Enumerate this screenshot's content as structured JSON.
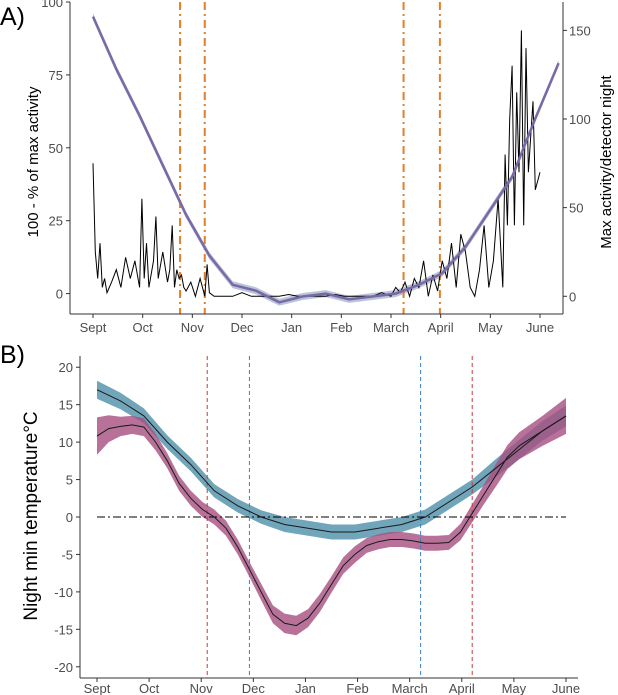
{
  "chart_data": [
    {
      "type": "line",
      "panel_label": "A)",
      "ylabel": "100 - % of max activity",
      "y2label": "Max activity/detector night",
      "x_ticks": [
        "Sept",
        "Oct",
        "Nov",
        "Dec",
        "Jan",
        "Feb",
        "March",
        "April",
        "May",
        "June"
      ],
      "y_ticks": [
        "0",
        "25",
        "50",
        "75",
        "100"
      ],
      "y2_ticks": [
        "0",
        "50",
        "100",
        "150"
      ],
      "ylim": [
        -7,
        100
      ],
      "y2lim": [
        -10,
        166
      ],
      "grid": false,
      "colors": {
        "fit": "#7b68a6",
        "fit_band": "#a7b8cf",
        "activity": "#000000",
        "vline": "#e37e2a"
      },
      "vlines_month_pos": [
        1.87,
        2.4,
        6.67,
        7.45
      ],
      "series": [
        {
          "role": "fit",
          "axis": "left",
          "x": [
            0,
            0.5,
            1,
            1.5,
            2,
            2.5,
            3,
            3.5,
            4,
            4.5,
            5,
            5.5,
            6,
            6.5,
            7,
            7.5,
            8,
            8.5,
            9,
            9.5,
            10
          ],
          "y": [
            95,
            77,
            61,
            44,
            27,
            13,
            3,
            1,
            -3,
            -1,
            0,
            -2,
            -1,
            0,
            3,
            7,
            16,
            28,
            40,
            60,
            79
          ]
        },
        {
          "role": "activity",
          "axis": "right",
          "x": [
            0,
            0.05,
            0.1,
            0.15,
            0.2,
            0.25,
            0.3,
            0.4,
            0.5,
            0.6,
            0.7,
            0.8,
            0.9,
            1.0,
            1.05,
            1.1,
            1.15,
            1.2,
            1.3,
            1.35,
            1.4,
            1.5,
            1.6,
            1.65,
            1.7,
            1.75,
            1.8,
            1.85,
            1.9,
            1.95,
            2.0,
            2.1,
            2.2,
            2.3,
            2.4,
            2.45,
            2.5,
            2.6,
            2.8,
            3.0,
            3.2,
            3.4,
            3.6,
            3.8,
            4.0,
            4.2,
            4.4,
            4.6,
            4.8,
            5.0,
            5.2,
            5.4,
            5.6,
            5.8,
            6.0,
            6.2,
            6.4,
            6.5,
            6.6,
            6.7,
            6.8,
            6.9,
            7.0,
            7.1,
            7.2,
            7.3,
            7.4,
            7.5,
            7.6,
            7.7,
            7.8,
            7.9,
            8.0,
            8.1,
            8.2,
            8.3,
            8.4,
            8.5,
            8.6,
            8.7,
            8.8,
            8.85,
            8.9,
            8.95,
            9.0,
            9.05,
            9.1,
            9.15,
            9.2,
            9.25,
            9.3,
            9.35,
            9.4,
            9.45,
            9.5,
            9.6
          ],
          "y": [
            75,
            25,
            10,
            30,
            5,
            10,
            2,
            8,
            15,
            5,
            22,
            10,
            20,
            5,
            55,
            10,
            30,
            5,
            20,
            45,
            10,
            25,
            8,
            15,
            40,
            5,
            15,
            10,
            12,
            5,
            3,
            8,
            0,
            10,
            0,
            18,
            2,
            0,
            0,
            0,
            2,
            0,
            0,
            0,
            0,
            1,
            0,
            0,
            0,
            0,
            1,
            0,
            0,
            0,
            0,
            2,
            0,
            5,
            2,
            8,
            0,
            10,
            5,
            20,
            0,
            12,
            3,
            20,
            10,
            30,
            5,
            35,
            25,
            5,
            0,
            15,
            40,
            5,
            20,
            55,
            5,
            80,
            40,
            100,
            130,
            40,
            115,
            70,
            150,
            40,
            140,
            70,
            90,
            110,
            60,
            70
          ]
        }
      ]
    },
    {
      "type": "line",
      "panel_label": "B)",
      "ylabel": "Night min temperature°C",
      "x_ticks": [
        "Sept",
        "Oct",
        "Nov",
        "Dec",
        "Jan",
        "Feb",
        "March",
        "April",
        "May",
        "June"
      ],
      "y_ticks": [
        "20",
        "15",
        "10",
        "5",
        "0",
        "-5",
        "-10",
        "-15",
        "-20"
      ],
      "ylim": [
        -21.5,
        21.5
      ],
      "grid": false,
      "colors": {
        "blue_band": "#4d8fa8",
        "pink_band": "#a64f80",
        "line": "#1a1a1a",
        "zero_line": "#000000",
        "vline_red": "#c43c3c",
        "vline_blue": "#3c7ec4"
      },
      "hline_y": 0,
      "vlines": [
        {
          "x_month_pos": 2.35,
          "color": "red"
        },
        {
          "x_month_pos": 3.25,
          "color": "blue"
        },
        {
          "x_month_pos": 6.9,
          "color": "blue"
        },
        {
          "x_month_pos": 8.0,
          "color": "red"
        }
      ],
      "series": [
        {
          "role": "blue",
          "x": [
            0,
            0.5,
            1,
            1.5,
            2,
            2.5,
            3,
            3.5,
            4,
            4.5,
            5,
            5.5,
            6,
            6.5,
            7,
            7.5,
            8,
            8.5,
            9,
            9.5,
            10
          ],
          "y": [
            17,
            15.5,
            13.5,
            10,
            7,
            3.5,
            1.5,
            0,
            -1,
            -1.5,
            -2,
            -2,
            -1.5,
            -1,
            0,
            2,
            4,
            6.5,
            9,
            11.5,
            13.5
          ],
          "band": [
            1.2,
            1.1,
            1,
            0.9,
            0.9,
            0.9,
            0.9,
            0.9,
            1,
            1,
            1,
            1,
            1,
            1,
            1,
            1,
            1,
            1.2,
            1.3,
            1.3,
            1.4
          ]
        },
        {
          "role": "pink",
          "x": [
            0,
            0.25,
            0.5,
            0.75,
            1,
            1.25,
            1.5,
            1.75,
            2,
            2.25,
            2.5,
            2.75,
            3,
            3.25,
            3.5,
            3.75,
            4,
            4.25,
            4.5,
            4.75,
            5,
            5.25,
            5.5,
            5.75,
            6,
            6.25,
            6.5,
            6.75,
            7,
            7.25,
            7.5,
            7.75,
            8,
            8.25,
            8.5,
            8.75,
            9,
            9.5,
            10
          ],
          "y": [
            10.8,
            11.8,
            12.1,
            12.3,
            12,
            10,
            7.5,
            4.5,
            2.5,
            1.0,
            0.0,
            -1.5,
            -4.0,
            -7.0,
            -10.0,
            -13.0,
            -14.2,
            -14.5,
            -13.5,
            -11.5,
            -9,
            -6.5,
            -5.0,
            -3.8,
            -3.3,
            -3.0,
            -3.0,
            -3.2,
            -3.5,
            -3.5,
            -3.4,
            -2,
            0.5,
            3.0,
            5.5,
            8.0,
            9.5,
            11.5,
            13.5
          ],
          "band": [
            2.5,
            1.8,
            1.3,
            1.2,
            1.2,
            1.1,
            1,
            1,
            1,
            1,
            1,
            1,
            1,
            1,
            1.1,
            1.2,
            1.3,
            1.3,
            1.2,
            1.2,
            1.1,
            1.1,
            1.1,
            1,
            1,
            1,
            1,
            1,
            1,
            1,
            1,
            1.1,
            1.2,
            1.3,
            1.5,
            1.6,
            1.8,
            2,
            2.4
          ]
        }
      ]
    }
  ]
}
